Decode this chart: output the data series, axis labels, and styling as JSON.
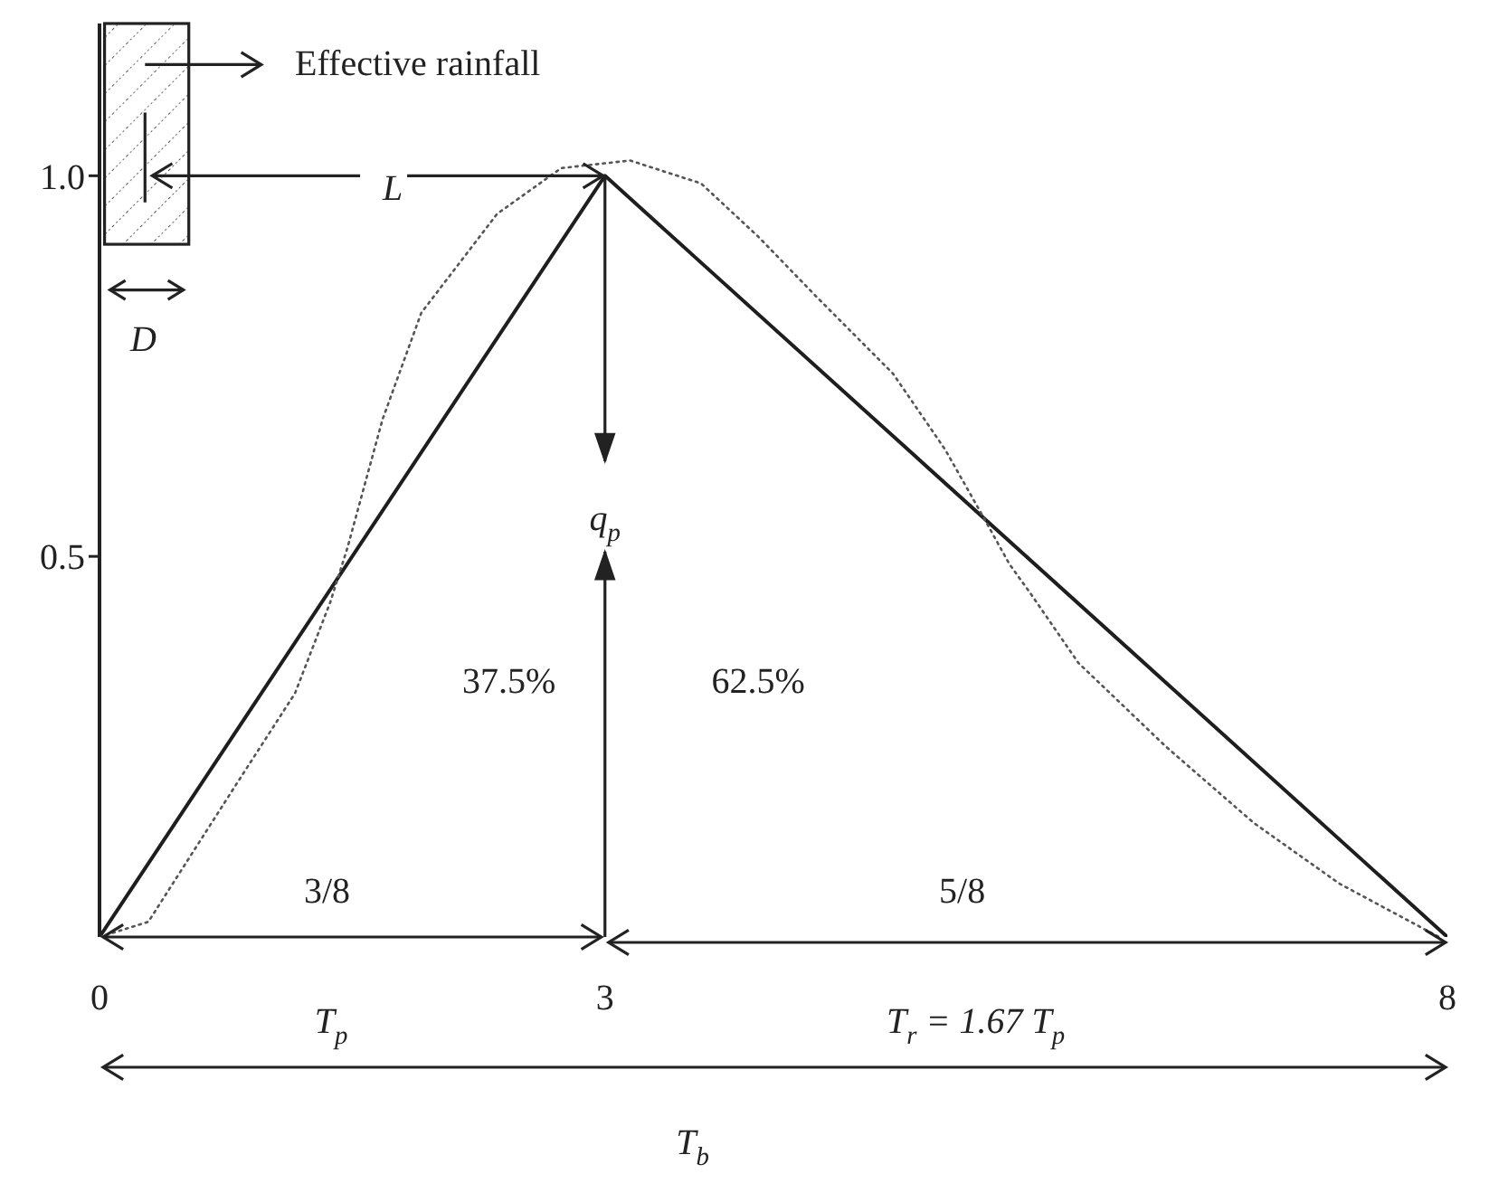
{
  "chart_data": {
    "type": "line",
    "xlim": [
      0,
      8
    ],
    "xticks": [
      0,
      3,
      8
    ],
    "ylim": [
      0,
      1.2
    ],
    "yticks": [
      0.5,
      {
        "value": 1,
        "label": "1.0"
      }
    ],
    "marker": "none",
    "series": [
      {
        "color": "#1e1e1e",
        "line_style": "solid",
        "x": [
          0,
          3,
          8
        ],
        "values": [
          0,
          1.0,
          0
        ]
      },
      {
        "color": "#555555",
        "line_style": "dotted",
        "x": [
          0,
          0.29,
          0.81,
          1.16,
          1.37,
          1.47,
          1.68,
          1.91,
          2.36,
          2.74,
          3.15,
          3.57,
          3.91,
          4.26,
          4.71,
          5.02,
          5.25,
          5.4,
          5.53,
          5.81,
          6.33,
          6.85,
          7.36,
          7.95
        ],
        "values": [
          0,
          0.02,
          0.2,
          0.32,
          0.44,
          0.51,
          0.68,
          0.82,
          0.95,
          1.01,
          1.02,
          0.99,
          0.92,
          0.84,
          0.74,
          0.64,
          0.55,
          0.49,
          0.45,
          0.36,
          0.25,
          0.15,
          0.07,
          0
        ]
      }
    ],
    "annotations": [
      "Effective rainfall",
      {
        "text": "L",
        "x": 3,
        "y": 1.0
      },
      "D",
      "q$_{p}$",
      "37.5%",
      "62.5%",
      "3/8",
      "5/8",
      "T$_{p}$",
      "T$_{r}$ = 1.67 T$_{p}$",
      "T$_{b}$"
    ]
  }
}
